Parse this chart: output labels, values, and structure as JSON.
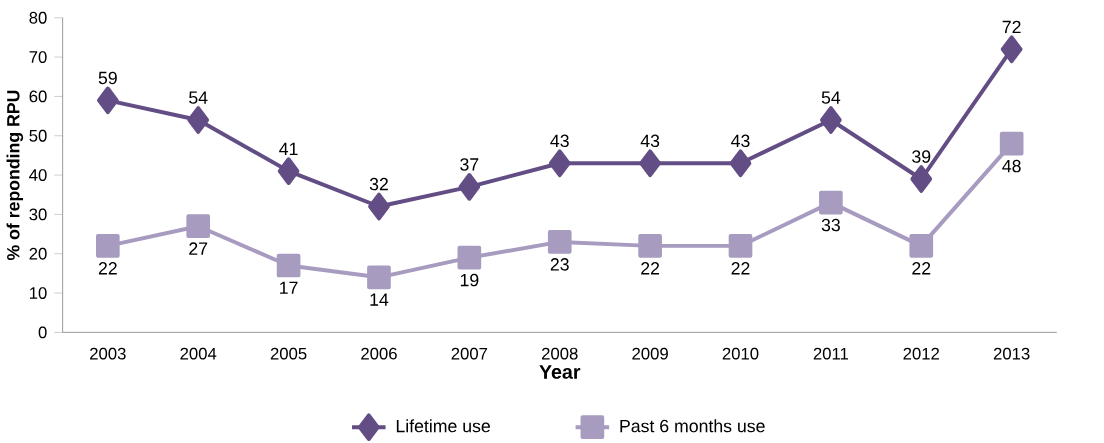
{
  "chart_data": {
    "type": "line",
    "xlabel": "Year",
    "ylabel": "% of reponding RPU",
    "categories": [
      "2003",
      "2004",
      "2005",
      "2006",
      "2007",
      "2008",
      "2009",
      "2010",
      "2011",
      "2012",
      "2013"
    ],
    "series": [
      {
        "name": "Lifetime use",
        "color": "#634d85",
        "marker": "diamond",
        "values": [
          59,
          54,
          41,
          32,
          37,
          43,
          43,
          43,
          54,
          39,
          72
        ]
      },
      {
        "name": "Past 6 months use",
        "color": "#a89bc0",
        "marker": "square",
        "values": [
          22,
          27,
          17,
          14,
          19,
          23,
          22,
          22,
          33,
          22,
          48
        ]
      }
    ],
    "ylim": [
      0,
      80
    ],
    "yticks": [
      0,
      10,
      20,
      30,
      40,
      50,
      60,
      70,
      80
    ],
    "grid": false,
    "legend": "bottom",
    "data_labels": true,
    "line_style": "solid"
  }
}
